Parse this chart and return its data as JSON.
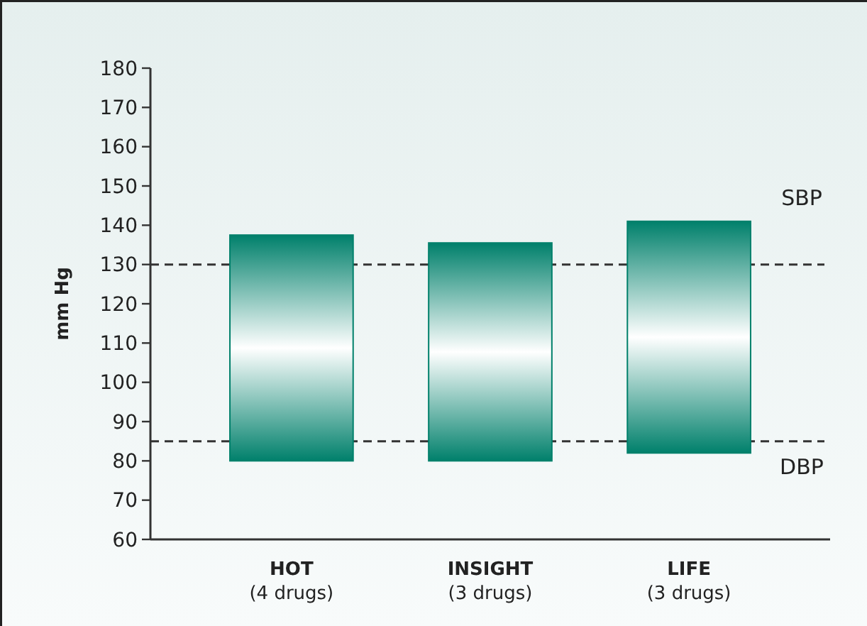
{
  "chart_data": {
    "type": "bar",
    "ylabel": "mm Hg",
    "categories": [
      "HOT\n(4 drugs)",
      "INSIGHT\n(3 drugs)",
      "LIFE\n(3 drugs)"
    ],
    "values": [
      57.5,
      55.5,
      59
    ],
    "base": [
      80,
      80,
      82
    ],
    "color": "#00806b",
    "ylim": [
      60,
      180
    ],
    "yticks": [
      60,
      70,
      80,
      90,
      100,
      110,
      120,
      130,
      140,
      150,
      160,
      170,
      180
    ],
    "ref_lines": [
      {
        "axis": "y",
        "value": 130,
        "label": "SBP",
        "color": "#333333",
        "line_style": "dashed"
      },
      {
        "axis": "y",
        "value": 85,
        "label": "DBP",
        "color": "#333333",
        "line_style": "dashed"
      }
    ],
    "grid": false
  }
}
